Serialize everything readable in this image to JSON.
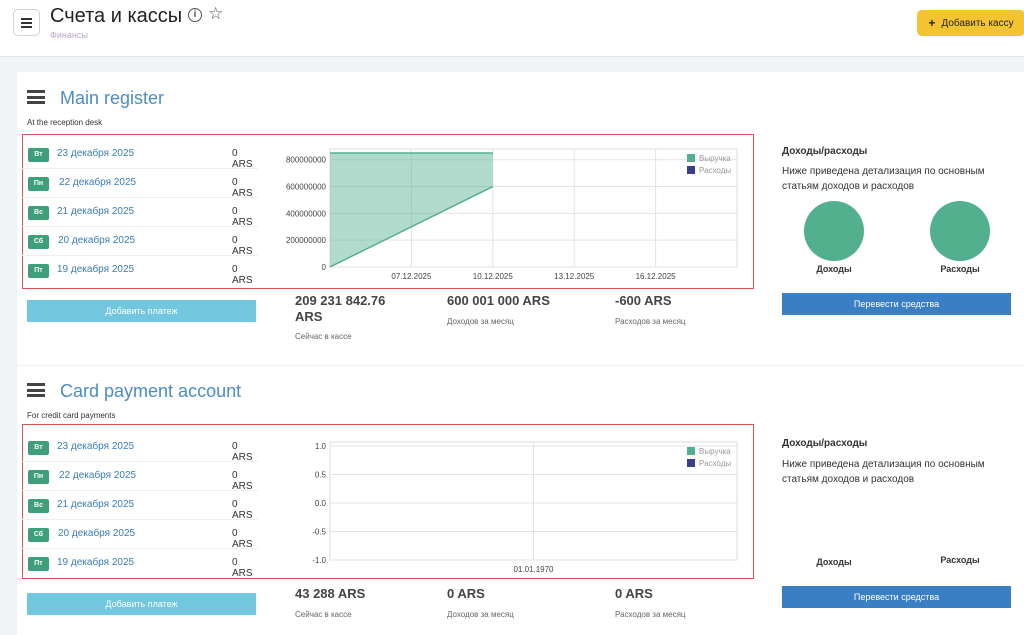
{
  "header": {
    "title": "Счета и кассы",
    "breadcrumb": "Финансы",
    "info_icon": "info-icon",
    "star_icon": "star-icon",
    "add_register_label": "Добавить кассу"
  },
  "colors": {
    "accent_yellow": "#f4c430",
    "link_blue": "#4a8cc4",
    "badge_green": "#3ea07a",
    "revenue": "#52b08f",
    "expense": "#3b3f8a",
    "highlight": "#d9534f",
    "transfer_btn": "#3a7fc4",
    "pay_btn": "#72c7de"
  },
  "registers": [
    {
      "title": "Main register",
      "subtitle": "At the reception desk",
      "rows": [
        {
          "day": "Вт",
          "date": "23 декабря 2025",
          "amount": "0 ARS"
        },
        {
          "day": "Пн",
          "date": "22 декабря 2025",
          "amount": "0 ARS"
        },
        {
          "day": "Вс",
          "date": "21 декабря 2025",
          "amount": "0 ARS"
        },
        {
          "day": "Сб",
          "date": "20 декабря 2025",
          "amount": "0 ARS"
        },
        {
          "day": "Пт",
          "date": "19 декабря 2025",
          "amount": "0 ARS"
        }
      ],
      "pay_button": "Добавить платеж",
      "stats": [
        {
          "value": "209 231 842.76 ARS",
          "label": "Сейчас в кассе"
        },
        {
          "value": "600 001 000 ARS",
          "label": "Доходов за месяц"
        },
        {
          "value": "-600 ARS",
          "label": "Расходов за месяц"
        }
      ],
      "side": {
        "title": "Доходы/расходы",
        "desc": "Ниже приведена детализация по основным статьям доходов и расходов",
        "income_label": "Доходы",
        "expense_label": "Расходы",
        "transfer_button": "Перевести средства"
      }
    },
    {
      "title": "Card payment account",
      "subtitle": "For credit card payments",
      "rows": [
        {
          "day": "Вт",
          "date": "23 декабря 2025",
          "amount": "0 ARS"
        },
        {
          "day": "Пн",
          "date": "22 декабря 2025",
          "amount": "0 ARS"
        },
        {
          "day": "Вс",
          "date": "21 декабря 2025",
          "amount": "0 ARS"
        },
        {
          "day": "Сб",
          "date": "20 декабря 2025",
          "amount": "0 ARS"
        },
        {
          "day": "Пт",
          "date": "19 декабря 2025",
          "amount": "0 ARS"
        }
      ],
      "pay_button": "Добавить платеж",
      "stats": [
        {
          "value": "43 288 ARS",
          "label": "Сейчас в кассе"
        },
        {
          "value": "0 ARS",
          "label": "Доходов за месяц"
        },
        {
          "value": "0 ARS",
          "label": "Расходов за месяц"
        }
      ],
      "side": {
        "title": "Доходы/расходы",
        "desc": "Ниже приведена детализация по основным статьям доходов и расходов",
        "income_label": "Доходы",
        "expense_label": "Расходы",
        "transfer_button": "Перевести средства"
      }
    }
  ],
  "chart_data": [
    {
      "type": "area",
      "x_ticks": [
        "07.12.2025",
        "10.12.2025",
        "13.12.2025",
        "16.12.2025"
      ],
      "y_ticks": [
        "0",
        "200000000",
        "400000000",
        "600000000",
        "800000000"
      ],
      "ylim": [
        0,
        850000000
      ],
      "series": [
        {
          "name": "Выручка",
          "color": "#52b08f",
          "x": [
            "04.12.2025",
            "10.12.2025",
            "10.12.2025"
          ],
          "y": [
            850000000,
            850000000,
            600000000
          ]
        },
        {
          "name": "Расходы",
          "color": "#3b3f8a",
          "x": [],
          "y": []
        }
      ],
      "legend": "top-right"
    },
    {
      "type": "line",
      "x_ticks": [
        "01.01.1970"
      ],
      "y_ticks": [
        "1.0",
        "0.5",
        "0.0",
        "-0.5",
        "-1.0"
      ],
      "ylim": [
        -1,
        1
      ],
      "series": [
        {
          "name": "Выручка",
          "color": "#52b08f",
          "x": [],
          "y": []
        },
        {
          "name": "Расходы",
          "color": "#3b3f8a",
          "x": [],
          "y": []
        }
      ],
      "legend": "top-right"
    }
  ]
}
